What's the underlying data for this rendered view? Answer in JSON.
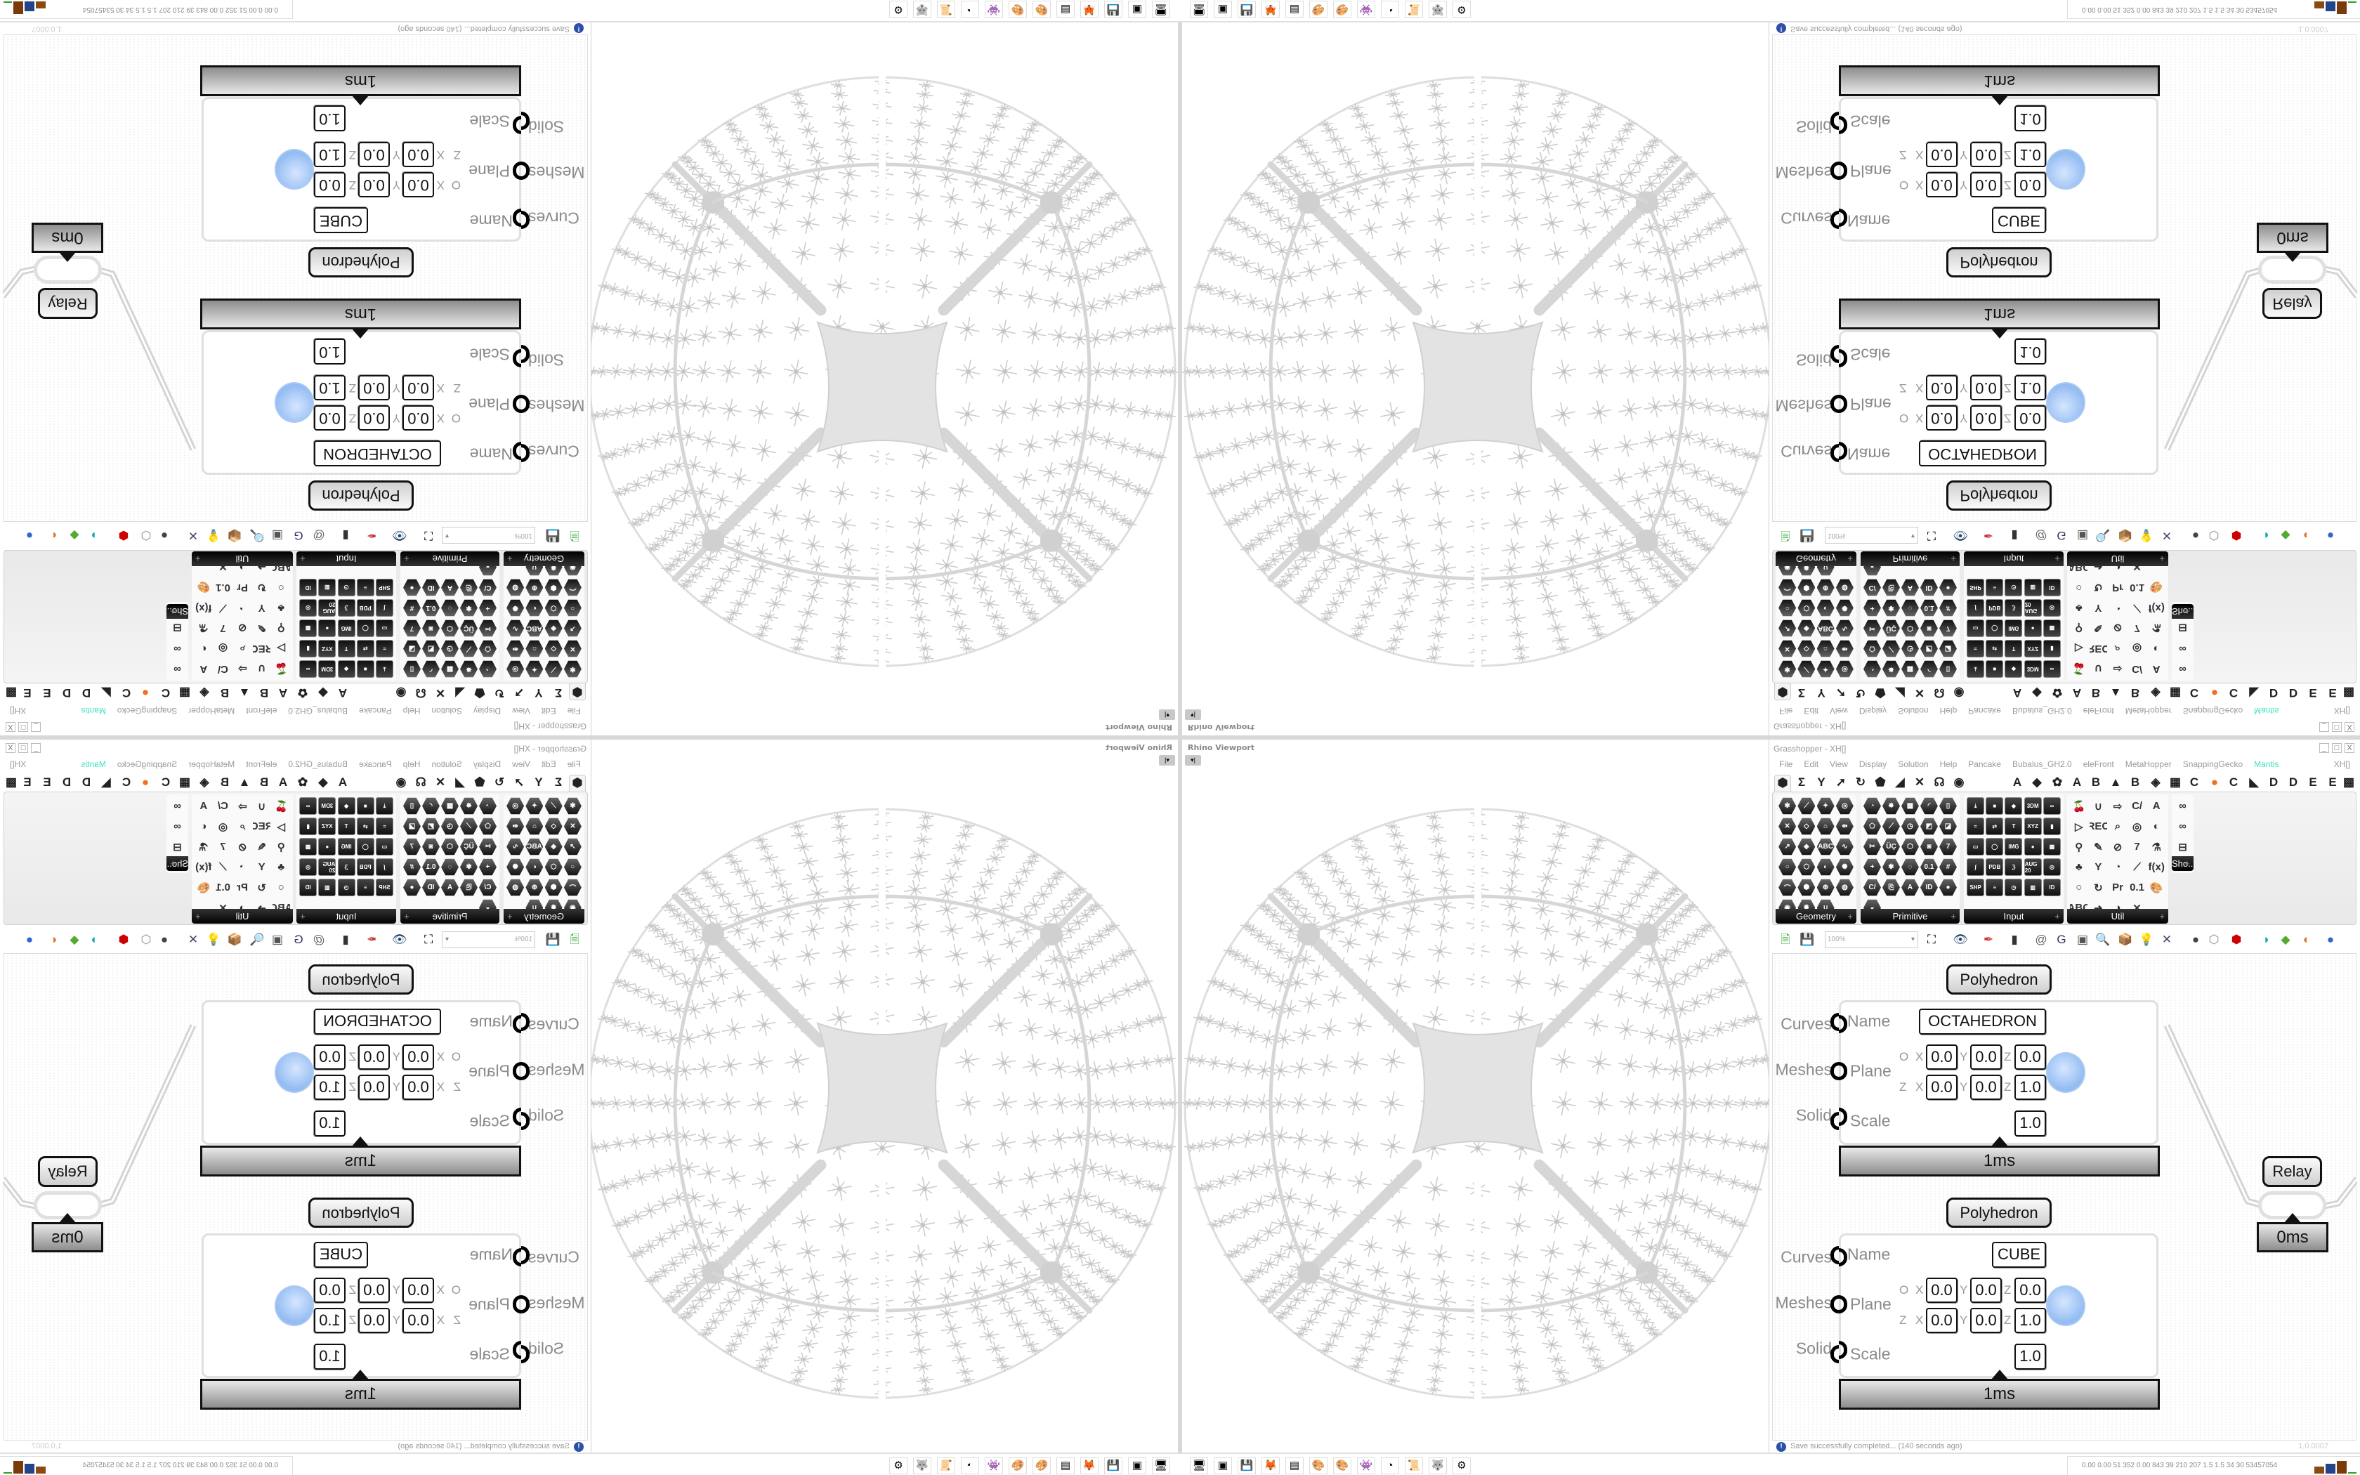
{
  "viewport": {
    "label": "Rhino Viewport",
    "toggle_icon": "dropdown-arrow"
  },
  "grasshopper": {
    "title": "Grasshopper - XH[]",
    "window_controls": [
      "_",
      "□",
      "X"
    ],
    "menu": [
      "File",
      "Edit",
      "View",
      "Display",
      "Solution",
      "Help",
      "Pancake",
      "Bubalus_GH2.0",
      "eleFront",
      "MetaHopper",
      "SnappingGecko",
      "Mantis"
    ],
    "active_menu_color": "#44e0c0",
    "document_name": "XH[]",
    "tabs": [
      "⬢",
      "Σ",
      "Y",
      "➚",
      "↻",
      "⬟",
      "◢",
      "✕",
      "☊",
      "◉",
      "A",
      "◆",
      "✿",
      "A",
      "B",
      "▲",
      "B",
      "◈",
      "▦",
      "C",
      "●",
      "C",
      "◣",
      "D",
      "D",
      "E",
      "E",
      "▩"
    ],
    "panels": [
      {
        "label": "Geometry",
        "style": "hex",
        "icons": [
          "✱",
          "⟋",
          "✦",
          "◎",
          "✕",
          "◇",
          "⌂",
          "⇹",
          "↗",
          "◈",
          "ABC",
          "∿",
          "○",
          "⬡",
          "◐",
          "✺",
          "⌒",
          "⬢",
          "⊕",
          "◍",
          "◉",
          "✹",
          "∪"
        ]
      },
      {
        "label": "Primitive",
        "style": "hex",
        "icons": [
          "◔",
          "✸",
          "▦",
          "◜",
          "▯",
          "⬠",
          "⟋",
          "◷",
          "◩",
          "◪",
          "✂",
          "ÜÇ",
          "⬡",
          "◙",
          "7",
          "+",
          "✾",
          "◌",
          "0.1",
          "#",
          "C/",
          "⎘",
          "A",
          "ID",
          "●",
          "◒"
        ]
      },
      {
        "label": "Input",
        "style": "sq",
        "icons": [
          "⤓",
          "■",
          "◆",
          "3DM",
          "∞",
          "≈",
          "⇄",
          "T",
          "XYZ",
          "▮",
          "▭",
          "◯",
          "IMG",
          "●",
          "▩",
          "∫",
          "PDB",
          "ℨ",
          "AUG 20",
          "◎",
          "SHP",
          "≡",
          "◷",
          "▥",
          "ID"
        ]
      },
      {
        "label": "Util",
        "style": "ut",
        "icons": [
          "🍒",
          "∪",
          "⇨",
          "C/",
          "A",
          "▷",
          "REC",
          "⌕",
          "◎",
          "◐",
          "⚲",
          "✎",
          "⊘",
          "7",
          "⚗",
          "♣",
          "Y",
          "◔",
          "⟋",
          "f(x)",
          "○",
          "↻",
          "Pr",
          "0.1",
          "🎨",
          "ABC",
          "➜",
          "◑",
          "✕"
        ]
      },
      {
        "label": "Sho...",
        "style": "ut",
        "icons": [
          "∞",
          "∞",
          "⊟"
        ]
      }
    ],
    "toolbar": {
      "zoom": "100%",
      "icons": [
        "new-document",
        "save",
        "zoom-extents",
        "preview-eye",
        "sketch-pen",
        "bake",
        "email",
        "gha",
        "document",
        "search",
        "package",
        "bulb",
        "wires",
        "shaded",
        "wireframe",
        "red-solid",
        "teal-surface",
        "green-surface",
        "sphere",
        "blue-sphere"
      ]
    },
    "canvas": {
      "components": [
        {
          "title": "Polyhedron",
          "name_input": "Name",
          "name_value": "OCTAHEDRON",
          "plane_input": "Plane",
          "origin_label": "O",
          "zaxis_label": "Z",
          "origin": [
            "0.0",
            "0.0",
            "0.0"
          ],
          "zaxis": [
            "0.0",
            "0.0",
            "1.0"
          ],
          "scale_input": "Scale",
          "scale_value": "1.0",
          "outputs": [
            "Curves",
            "Meshes",
            "Solid"
          ],
          "timer": "1ms"
        },
        {
          "title": "Polyhedron",
          "name_input": "Name",
          "name_value": "CUBE",
          "plane_input": "Plane",
          "origin_label": "O",
          "zaxis_label": "Z",
          "origin": [
            "0.0",
            "0.0",
            "0.0"
          ],
          "zaxis": [
            "0.0",
            "0.0",
            "1.0"
          ],
          "scale_input": "Scale",
          "scale_value": "1.0",
          "outputs": [
            "Curves",
            "Meshes",
            "Solid"
          ],
          "timer": "1ms"
        }
      ],
      "axis_letters": [
        "X",
        "Y",
        "Z"
      ],
      "relay": {
        "title": "Relay",
        "timer": "0ms"
      }
    },
    "status": {
      "message": "Save successfully completed... (140 seconds ago)",
      "version": "1.0.0007"
    }
  },
  "taskbar": {
    "icons": [
      "🖥",
      "▣",
      "💾",
      "🦊",
      "▤",
      "🎨",
      "🎨",
      "👾",
      "◔",
      "📜",
      "🐺",
      "⚙"
    ],
    "icon_names": [
      "monitor",
      "terminal",
      "floppy-64",
      "firefox",
      "calculator",
      "paint",
      "paint",
      "ghost",
      "blender",
      "scroll",
      "wolf",
      "red-gear"
    ],
    "stats": "0.00 0.00 51 352 0.00 843 39 210 207 1.5 1.5 34 30 53457054",
    "graph_colors": [
      "#8a4a10",
      "#22448a",
      "#7a3a0a",
      "#2aa02a"
    ]
  }
}
